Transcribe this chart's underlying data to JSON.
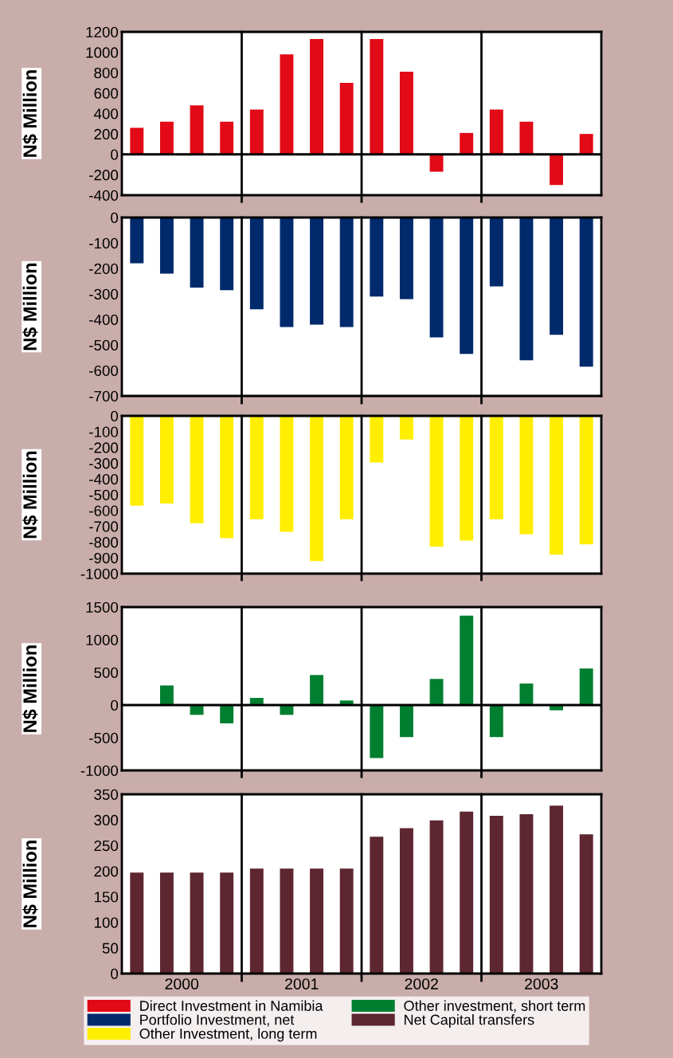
{
  "chart_data": [
    {
      "type": "bar",
      "ylabel": "N$ Million",
      "categories": [
        null,
        null,
        null,
        null,
        null,
        null,
        null,
        null,
        null,
        null,
        null,
        null,
        null,
        null,
        null,
        null
      ],
      "ylim": [
        -400,
        1200
      ],
      "yticks": [
        -400,
        -200,
        0,
        200,
        400,
        600,
        800,
        1000,
        1200
      ],
      "grid": false,
      "legend": "bottom",
      "ref_lines": [
        {
          "axis": "y",
          "value": 0,
          "color": "#000000"
        }
      ],
      "series": [
        {
          "name": "Direct Investment in Namibia",
          "color": "#e10a16",
          "values": [
            260,
            320,
            480,
            320,
            440,
            980,
            1130,
            700,
            1130,
            810,
            -170,
            210,
            440,
            320,
            -300,
            200
          ]
        }
      ]
    },
    {
      "type": "bar",
      "ylabel": "N$ Million",
      "categories": [
        null,
        null,
        null,
        null,
        null,
        null,
        null,
        null,
        null,
        null,
        null,
        null,
        null,
        null,
        null,
        null
      ],
      "ylim": [
        -700,
        0
      ],
      "yticks": [
        -700,
        -600,
        -500,
        -400,
        -300,
        -200,
        -100,
        0
      ],
      "grid": false,
      "legend": "bottom",
      "series": [
        {
          "name": "Portfolio Investment, net",
          "color": "#002a6c",
          "values": [
            -180,
            -220,
            -275,
            -285,
            -360,
            -430,
            -420,
            -430,
            -310,
            -320,
            -470,
            -535,
            -270,
            -560,
            -460,
            -585
          ]
        }
      ]
    },
    {
      "type": "bar",
      "ylabel": "N$ Million",
      "categories": [
        null,
        null,
        null,
        null,
        null,
        null,
        null,
        null,
        null,
        null,
        null,
        null,
        null,
        null,
        null,
        null
      ],
      "ylim": [
        -1000,
        0
      ],
      "yticks": [
        -1000,
        -900,
        -800,
        -700,
        -600,
        -500,
        -400,
        -300,
        -200,
        -100,
        0
      ],
      "grid": false,
      "legend": "bottom",
      "series": [
        {
          "name": "Other Investment, long term",
          "color": "#ffee00",
          "values": [
            -570,
            -555,
            -680,
            -775,
            -655,
            -735,
            -920,
            -655,
            -295,
            -150,
            -830,
            -790,
            -655,
            -750,
            -880,
            -815
          ]
        }
      ]
    },
    {
      "type": "bar",
      "ylabel": "N$ Million",
      "categories": [
        null,
        null,
        null,
        null,
        null,
        null,
        null,
        null,
        null,
        null,
        null,
        null,
        null,
        null,
        null,
        null
      ],
      "ylim": [
        -1000,
        1500
      ],
      "yticks": [
        -1000,
        -500,
        0,
        500,
        1000,
        1500
      ],
      "grid": false,
      "legend": "bottom",
      "ref_lines": [
        {
          "axis": "y",
          "value": 0,
          "color": "#000000"
        }
      ],
      "series": [
        {
          "name": "Other investment, short term",
          "color": "#007f30",
          "values": [
            0,
            300,
            -150,
            -280,
            110,
            -150,
            460,
            70,
            -810,
            -490,
            400,
            1370,
            -490,
            330,
            -80,
            560
          ]
        }
      ]
    },
    {
      "type": "bar",
      "ylabel": "N$ Million",
      "categories": [
        null,
        null,
        null,
        null,
        null,
        null,
        null,
        null,
        null,
        null,
        null,
        null,
        null,
        null,
        null,
        null
      ],
      "ylim": [
        0,
        350
      ],
      "yticks": [
        0,
        50,
        100,
        150,
        200,
        250,
        300,
        350
      ],
      "grid": false,
      "legend": "bottom",
      "annotations": [
        "2000",
        "2001",
        "2002",
        "2003"
      ],
      "series": [
        {
          "name": "Net Capital transfers",
          "color": "#5e2630",
          "values": [
            197,
            197,
            197,
            197,
            205,
            205,
            205,
            205,
            267,
            284,
            299,
            316,
            308,
            311,
            328,
            272
          ]
        }
      ]
    }
  ]
}
